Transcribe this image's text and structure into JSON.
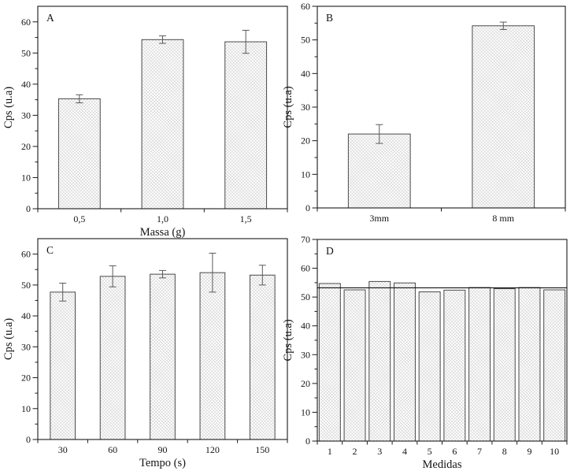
{
  "figure_title": "",
  "colors": {
    "background": "#ffffff",
    "axis": "#1a1a1a",
    "bar_edge": "#4a4a4a",
    "bar_hatch": "#b3b3b3",
    "error_bar": "#5a5a5a",
    "reference_line": "#111111",
    "text": "#141414"
  },
  "chart_data": [
    {
      "id": "A",
      "type": "bar",
      "panel_label": "A",
      "position": "top-left",
      "title": "",
      "xlabel": "Massa (g)",
      "ylabel": "Cps (u.a)",
      "categories": [
        "0,5",
        "1,0",
        "1,5"
      ],
      "values": [
        35.3,
        54.3,
        53.6
      ],
      "errors": [
        1.3,
        1.2,
        3.7
      ],
      "ylim": [
        0,
        65
      ],
      "ytick_step": 10,
      "yminor_step": 5,
      "ymax_tick": 60,
      "bar_width_frac": 0.5,
      "grid": "off",
      "legend": "none"
    },
    {
      "id": "B",
      "type": "bar",
      "panel_label": "B",
      "position": "top-right",
      "title": "",
      "xlabel": "",
      "ylabel": "Cps (u.a)",
      "categories": [
        "3mm",
        "8 mm"
      ],
      "values": [
        22.0,
        54.2
      ],
      "errors": [
        2.8,
        1.1
      ],
      "ylim": [
        0,
        60
      ],
      "ytick_step": 10,
      "yminor_step": 5,
      "ymax_tick": 60,
      "bar_width_frac": 0.5,
      "grid": "off",
      "legend": "none"
    },
    {
      "id": "C",
      "type": "bar",
      "panel_label": "C",
      "position": "bottom-left",
      "title": "",
      "xlabel": "Tempo (s)",
      "ylabel": "Cps (u.a)",
      "categories": [
        "30",
        "60",
        "90",
        "120",
        "150"
      ],
      "values": [
        47.7,
        52.8,
        53.5,
        54.0,
        53.2
      ],
      "errors": [
        2.9,
        3.4,
        1.2,
        6.3,
        3.2
      ],
      "ylim": [
        0,
        65
      ],
      "ytick_step": 10,
      "yminor_step": 5,
      "ymax_tick": 60,
      "bar_width_frac": 0.5,
      "grid": "off",
      "legend": "none"
    },
    {
      "id": "D",
      "type": "bar",
      "panel_label": "D",
      "position": "bottom-right",
      "title": "",
      "xlabel": "Medidas",
      "ylabel": "Cps (u.a)",
      "categories": [
        "1",
        "2",
        "3",
        "4",
        "5",
        "6",
        "7",
        "8",
        "9",
        "10"
      ],
      "values": [
        54.7,
        52.5,
        55.4,
        54.9,
        51.8,
        52.4,
        53.3,
        52.9,
        53.3,
        52.5
      ],
      "errors": null,
      "reference_line": 53.2,
      "ylim": [
        0,
        70
      ],
      "ytick_step": 10,
      "yminor_step": 5,
      "ymax_tick": 70,
      "bar_width_frac": 0.85,
      "grid": "off",
      "legend": "none"
    }
  ]
}
